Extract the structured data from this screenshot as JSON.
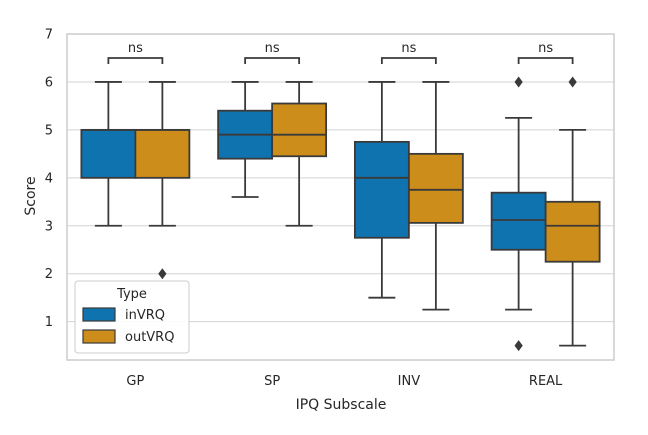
{
  "chart_data": {
    "type": "box",
    "xlabel": "IPQ Subscale",
    "ylabel": "Score",
    "ylim": [
      0.2,
      7.0
    ],
    "yticks": [
      1,
      2,
      3,
      4,
      5,
      6,
      7
    ],
    "grid": "horizontal",
    "legend": {
      "title": "Type",
      "placement": "bottom-left",
      "entries": [
        "inVRQ",
        "outVRQ"
      ]
    },
    "colors": {
      "inVRQ": "#0f73b0",
      "outVRQ": "#cd8d1a",
      "grid": "#d3d3d3",
      "frame": "#cccccc",
      "line": "#3a3a3a"
    },
    "categories": [
      "GP",
      "SP",
      "INV",
      "REAL"
    ],
    "series": [
      {
        "name": "inVRQ",
        "boxes": [
          {
            "min": 3.0,
            "q1": 4.0,
            "median": 5.0,
            "q3": 5.0,
            "max": 6.0,
            "outliers": []
          },
          {
            "min": 3.6,
            "q1": 4.4,
            "median": 4.9,
            "q3": 5.4,
            "max": 6.0,
            "outliers": []
          },
          {
            "min": 1.5,
            "q1": 2.75,
            "median": 4.0,
            "q3": 4.75,
            "max": 6.0,
            "outliers": []
          },
          {
            "min": 1.25,
            "q1": 2.5,
            "median": 3.12,
            "q3": 3.69,
            "max": 5.25,
            "outliers": [
              6.0,
              0.5
            ]
          }
        ]
      },
      {
        "name": "outVRQ",
        "boxes": [
          {
            "min": 3.0,
            "q1": 4.0,
            "median": 5.0,
            "q3": 5.0,
            "max": 6.0,
            "outliers": [
              2.0
            ]
          },
          {
            "min": 3.0,
            "q1": 4.45,
            "median": 4.9,
            "q3": 5.55,
            "max": 6.0,
            "outliers": []
          },
          {
            "min": 1.25,
            "q1": 3.06,
            "median": 3.75,
            "q3": 4.5,
            "max": 6.0,
            "outliers": []
          },
          {
            "min": 0.5,
            "q1": 2.25,
            "median": 3.0,
            "q3": 3.5,
            "max": 5.0,
            "outliers": [
              6.0
            ]
          }
        ]
      }
    ],
    "annotations": [
      {
        "category": "GP",
        "text": "ns"
      },
      {
        "category": "SP",
        "text": "ns"
      },
      {
        "category": "INV",
        "text": "ns"
      },
      {
        "category": "REAL",
        "text": "ns"
      }
    ]
  }
}
